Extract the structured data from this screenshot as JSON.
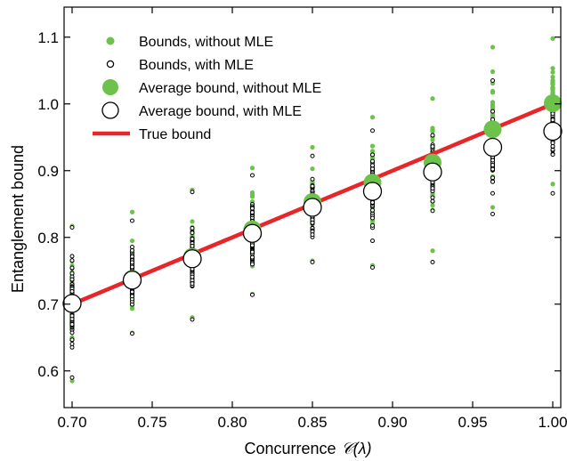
{
  "chart_data": {
    "type": "scatter",
    "xlabel_text": "Concurrence",
    "xlabel_math": "𝒞(λ)",
    "ylabel": "Entanglement bound",
    "xlim": [
      0.695,
      1.005
    ],
    "ylim": [
      0.545,
      1.145
    ],
    "x_ticks": [
      0.7,
      0.75,
      0.8,
      0.85,
      0.9,
      0.95,
      1.0
    ],
    "x_tick_labels": [
      "0.70",
      "0.75",
      "0.80",
      "0.85",
      "0.90",
      "0.95",
      "1.00"
    ],
    "y_ticks": [
      0.6,
      0.7,
      0.8,
      0.9,
      1.0,
      1.1
    ],
    "y_tick_labels": [
      "0.6",
      "0.7",
      "0.8",
      "0.9",
      "1.0",
      "1.1"
    ],
    "grid": false,
    "legend_position": "top-left",
    "colors": {
      "green": "#6cc24a",
      "red": "#e8262a",
      "black": "#000000",
      "white": "#ffffff"
    },
    "legend": [
      {
        "label": "Bounds, without MLE",
        "marker": "small-green-dot"
      },
      {
        "label": "Bounds, with MLE",
        "marker": "small-open-circle"
      },
      {
        "label": "Average bound, without MLE",
        "marker": "large-green-dot"
      },
      {
        "label": "Average bound, with MLE",
        "marker": "large-open-circle"
      },
      {
        "label": "True bound",
        "marker": "red-line"
      }
    ],
    "x": [
      0.7,
      0.7375,
      0.775,
      0.8125,
      0.85,
      0.8875,
      0.925,
      0.9625,
      1.0
    ],
    "series": [
      {
        "name": "Average bound, without MLE",
        "values": [
          0.7,
          0.738,
          0.771,
          0.812,
          0.853,
          0.882,
          0.912,
          0.962,
          1.001
        ]
      },
      {
        "name": "Average bound, with MLE",
        "values": [
          0.701,
          0.736,
          0.768,
          0.806,
          0.845,
          0.869,
          0.898,
          0.935,
          0.959
        ]
      },
      {
        "name": "True bound",
        "values": [
          0.7,
          1.0
        ]
      }
    ],
    "bounds_without_mle_range": [
      [
        0.585,
        0.817
      ],
      [
        0.657,
        0.838
      ],
      [
        0.68,
        0.871
      ],
      [
        0.715,
        0.904
      ],
      [
        0.765,
        0.935
      ],
      [
        0.758,
        0.98
      ],
      [
        0.78,
        1.008
      ],
      [
        0.845,
        1.085
      ],
      [
        0.88,
        1.098
      ]
    ],
    "bounds_with_mle_range": [
      [
        0.59,
        0.815
      ],
      [
        0.656,
        0.825
      ],
      [
        0.677,
        0.868
      ],
      [
        0.714,
        0.893
      ],
      [
        0.763,
        0.922
      ],
      [
        0.755,
        0.96
      ],
      [
        0.763,
        0.953
      ],
      [
        0.835,
        1.035
      ],
      [
        0.866,
        1.0
      ]
    ]
  }
}
